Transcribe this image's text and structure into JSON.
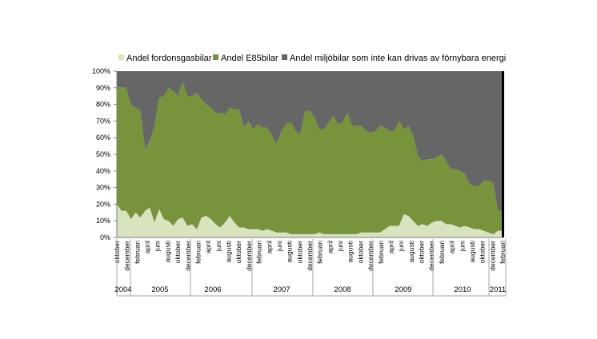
{
  "chart_data": {
    "type": "area",
    "stacked": true,
    "percent": true,
    "legend_position": "top",
    "grid": false,
    "ylim": [
      0,
      100
    ],
    "y_ticks": [
      "0%",
      "10%",
      "20%",
      "30%",
      "40%",
      "50%",
      "60%",
      "70%",
      "80%",
      "90%",
      "100%"
    ],
    "series": [
      {
        "name": "Andel fordonsgasbilar",
        "color": "#d7e4bd",
        "values": [
          20,
          16,
          16,
          11,
          15,
          12,
          16,
          18,
          9,
          17,
          11,
          10,
          7,
          11,
          12,
          7,
          8,
          5,
          12,
          13,
          11,
          8,
          6,
          9,
          13,
          9,
          6,
          6,
          5,
          5,
          5,
          4,
          5,
          4,
          3,
          3,
          3,
          2,
          2,
          2,
          2,
          2,
          2,
          3,
          2,
          2,
          2,
          2,
          2,
          2,
          2,
          2,
          3,
          3,
          3,
          3,
          3,
          5,
          7,
          7,
          7,
          14,
          13,
          10,
          7,
          8,
          7,
          9,
          10,
          10,
          8,
          8,
          7,
          6,
          7,
          6,
          5,
          5,
          4,
          3,
          2,
          4,
          4
        ]
      },
      {
        "name": "Andel E85bilar",
        "color": "#77933c",
        "values": [
          71,
          74,
          74,
          69,
          63,
          64,
          37,
          40,
          58,
          67,
          74,
          80,
          81,
          74,
          82,
          78,
          77,
          82,
          71,
          67,
          67,
          67,
          69,
          65,
          65,
          68,
          71,
          60,
          65,
          60,
          63,
          62,
          61,
          57,
          53,
          61,
          65,
          67,
          62,
          60,
          74,
          74,
          70,
          62,
          63,
          67,
          71,
          66,
          67,
          73,
          65,
          65,
          64,
          61,
          60,
          61,
          64,
          61,
          57,
          57,
          63,
          51,
          54,
          51,
          42,
          38,
          40,
          38,
          38,
          40,
          38,
          33,
          34,
          34,
          31,
          26,
          26,
          26,
          30,
          31,
          31,
          12,
          12
        ]
      },
      {
        "name": "Andel miljöbilar som inte kan drivas av förnybara energi",
        "color": "#666666",
        "values": [
          9,
          10,
          10,
          20,
          22,
          24,
          47,
          42,
          33,
          16,
          15,
          10,
          12,
          15,
          6,
          15,
          15,
          13,
          17,
          20,
          22,
          25,
          25,
          26,
          22,
          23,
          23,
          34,
          30,
          35,
          32,
          34,
          34,
          39,
          44,
          36,
          32,
          31,
          36,
          38,
          24,
          24,
          28,
          35,
          35,
          31,
          27,
          32,
          31,
          25,
          33,
          33,
          33,
          36,
          37,
          36,
          33,
          34,
          36,
          36,
          30,
          35,
          33,
          39,
          51,
          54,
          53,
          53,
          52,
          50,
          54,
          59,
          59,
          60,
          62,
          68,
          69,
          69,
          66,
          66,
          67,
          84,
          84
        ]
      }
    ],
    "x_month_labels": [
      "oktober",
      "december",
      "februari",
      "april",
      "juni",
      "augusti",
      "oktober",
      "december",
      "februari",
      "april",
      "juni",
      "augusti",
      "oktober",
      "december",
      "februari",
      "april",
      "juni",
      "augusti",
      "oktober",
      "december",
      "februari",
      "april",
      "juni",
      "augusti",
      "oktober",
      "december",
      "februari",
      "april",
      "juni",
      "augusti",
      "oktober",
      "december",
      "februari",
      "april",
      "juni",
      "augusti",
      "oktober",
      "december",
      "februari"
    ],
    "x_year_labels": [
      "2004",
      "2005",
      "2006",
      "2007",
      "2008",
      "2009",
      "2010",
      "2011"
    ]
  }
}
